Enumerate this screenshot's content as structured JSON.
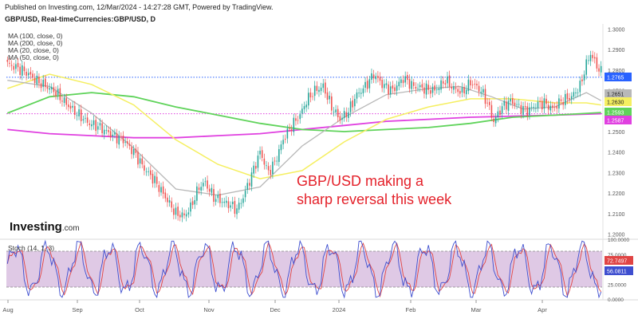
{
  "header": {
    "published": "Published on Investing.com, 12/Mar/2024 - 14:27:28 GMT, Powered by TradingView.",
    "symbol": "GBP/USD, Real-timeCurrencies:GBP/USD, D"
  },
  "ma_legend": [
    "MA (100, close, 0)",
    "MA (200, close, 0)",
    "MA (20, close, 0)",
    "MA (50, close, 0)"
  ],
  "logo": {
    "brand": "Investing",
    "suffix": ".com"
  },
  "annotation": [
    "GBP/USD making a",
    "sharp reversal this week"
  ],
  "stoch_label": "Stoch (14, 1, 3)",
  "colors": {
    "up": "#26a69a",
    "down": "#ef5350",
    "ma20": "#b8b8b8",
    "ma50": "#f5ef60",
    "ma100": "#5fd35a",
    "ma200": "#e040e0",
    "stoch_k": "#3e4ecf",
    "stoch_d": "#e04444",
    "stoch_band": "#d9bfe0"
  },
  "chart_data": [
    {
      "type": "candlestick",
      "title": "",
      "x_ticks": [
        "Aug",
        "Sep",
        "Oct",
        "Nov",
        "Dec",
        "2024",
        "Feb",
        "Mar",
        "Apr"
      ],
      "y_ticks": [
        1.3,
        1.29,
        1.28,
        1.27,
        1.26,
        1.25,
        1.24,
        1.23,
        1.22,
        1.21,
        1.2
      ],
      "ylim": [
        1.1975,
        1.3025
      ],
      "price_labels": [
        {
          "value": 1.2765,
          "text": "1.2765",
          "color": "#2962ff"
        },
        {
          "value": 1.2651,
          "text": "1.2651",
          "color": "#b8b8b8"
        },
        {
          "value": 1.263,
          "text": "1.2630",
          "color": "#f5ef60"
        },
        {
          "value": 1.2593,
          "text": "1.2593",
          "color": "#5fd35a"
        },
        {
          "value": 1.2587,
          "text": "1.2587",
          "color": "#e040e0"
        }
      ],
      "reference_lines": [
        {
          "value": 1.2765,
          "color": "#2962ff"
        },
        {
          "value": 1.2587,
          "color": "#e040e0"
        }
      ],
      "path_points": [
        [
          0,
          1.283
        ],
        [
          8,
          1.2795
        ],
        [
          15,
          1.274
        ],
        [
          22,
          1.27
        ],
        [
          30,
          1.2615
        ],
        [
          38,
          1.2545
        ],
        [
          44,
          1.252
        ],
        [
          50,
          1.248
        ],
        [
          55,
          1.246
        ],
        [
          60,
          1.24
        ],
        [
          65,
          1.232
        ],
        [
          70,
          1.226
        ],
        [
          75,
          1.218
        ],
        [
          80,
          1.21
        ],
        [
          84,
          1.209
        ],
        [
          87,
          1.213
        ],
        [
          91,
          1.223
        ],
        [
          94,
          1.225
        ],
        [
          98,
          1.218
        ],
        [
          102,
          1.216
        ],
        [
          106,
          1.214
        ],
        [
          109,
          1.212
        ],
        [
          112,
          1.218
        ],
        [
          116,
          1.229
        ],
        [
          120,
          1.24
        ],
        [
          124,
          1.23
        ],
        [
          127,
          1.235
        ],
        [
          131,
          1.246
        ],
        [
          135,
          1.253
        ],
        [
          139,
          1.258
        ],
        [
          142,
          1.265
        ],
        [
          146,
          1.27
        ],
        [
          150,
          1.272
        ],
        [
          154,
          1.262
        ],
        [
          158,
          1.256
        ],
        [
          162,
          1.26
        ],
        [
          166,
          1.268
        ],
        [
          170,
          1.272
        ],
        [
          174,
          1.278
        ],
        [
          178,
          1.273
        ],
        [
          183,
          1.27
        ],
        [
          188,
          1.276
        ],
        [
          193,
          1.272
        ],
        [
          198,
          1.271
        ],
        [
          203,
          1.27
        ],
        [
          208,
          1.275
        ],
        [
          212,
          1.271
        ],
        [
          216,
          1.269
        ],
        [
          220,
          1.274
        ],
        [
          225,
          1.27
        ],
        [
          228,
          1.264
        ],
        [
          231,
          1.255
        ],
        [
          235,
          1.262
        ],
        [
          239,
          1.265
        ],
        [
          243,
          1.262
        ],
        [
          247,
          1.26
        ],
        [
          251,
          1.263
        ],
        [
          255,
          1.264
        ],
        [
          259,
          1.261
        ],
        [
          263,
          1.265
        ],
        [
          268,
          1.267
        ],
        [
          272,
          1.272
        ],
        [
          275,
          1.283
        ],
        [
          277,
          1.288
        ],
        [
          280,
          1.282
        ],
        [
          282,
          1.279
        ]
      ],
      "ma20": [
        [
          0,
          1.275
        ],
        [
          20,
          1.272
        ],
        [
          40,
          1.259
        ],
        [
          60,
          1.242
        ],
        [
          80,
          1.222
        ],
        [
          100,
          1.219
        ],
        [
          120,
          1.223
        ],
        [
          140,
          1.243
        ],
        [
          160,
          1.257
        ],
        [
          180,
          1.268
        ],
        [
          200,
          1.271
        ],
        [
          215,
          1.272
        ],
        [
          230,
          1.267
        ],
        [
          245,
          1.261
        ],
        [
          260,
          1.262
        ],
        [
          275,
          1.269
        ],
        [
          282,
          1.2651
        ]
      ],
      "ma50": [
        [
          0,
          1.271
        ],
        [
          20,
          1.278
        ],
        [
          40,
          1.273
        ],
        [
          60,
          1.263
        ],
        [
          80,
          1.246
        ],
        [
          100,
          1.234
        ],
        [
          120,
          1.227
        ],
        [
          140,
          1.231
        ],
        [
          160,
          1.245
        ],
        [
          180,
          1.256
        ],
        [
          200,
          1.262
        ],
        [
          220,
          1.266
        ],
        [
          240,
          1.266
        ],
        [
          260,
          1.264
        ],
        [
          275,
          1.264
        ],
        [
          282,
          1.263
        ]
      ],
      "ma100": [
        [
          0,
          1.259
        ],
        [
          20,
          1.267
        ],
        [
          40,
          1.269
        ],
        [
          60,
          1.267
        ],
        [
          80,
          1.262
        ],
        [
          100,
          1.258
        ],
        [
          120,
          1.254
        ],
        [
          140,
          1.251
        ],
        [
          160,
          1.25
        ],
        [
          180,
          1.251
        ],
        [
          200,
          1.252
        ],
        [
          220,
          1.254
        ],
        [
          240,
          1.257
        ],
        [
          260,
          1.258
        ],
        [
          282,
          1.2593
        ]
      ],
      "ma200": [
        [
          0,
          1.251
        ],
        [
          20,
          1.249
        ],
        [
          40,
          1.248
        ],
        [
          60,
          1.247
        ],
        [
          80,
          1.247
        ],
        [
          100,
          1.248
        ],
        [
          120,
          1.249
        ],
        [
          140,
          1.251
        ],
        [
          160,
          1.253
        ],
        [
          180,
          1.255
        ],
        [
          200,
          1.256
        ],
        [
          220,
          1.257
        ],
        [
          240,
          1.2575
        ],
        [
          260,
          1.258
        ],
        [
          282,
          1.2587
        ]
      ]
    },
    {
      "type": "line",
      "title": "",
      "name": "Stoch (14, 1, 3)",
      "y_ticks": [
        100,
        75,
        50,
        25,
        0
      ],
      "y_tick_labels": [
        "100.0000",
        "75.0000",
        "50.0000",
        "25.0000",
        "0.0000"
      ],
      "ylim": [
        0,
        100
      ],
      "band": [
        20,
        80
      ],
      "value_labels": [
        {
          "value": 72.7497,
          "text": "72.7497",
          "color": "#e04444"
        },
        {
          "value": 56.0811,
          "text": "56.0811",
          "color": "#3e4ecf"
        }
      ]
    }
  ]
}
